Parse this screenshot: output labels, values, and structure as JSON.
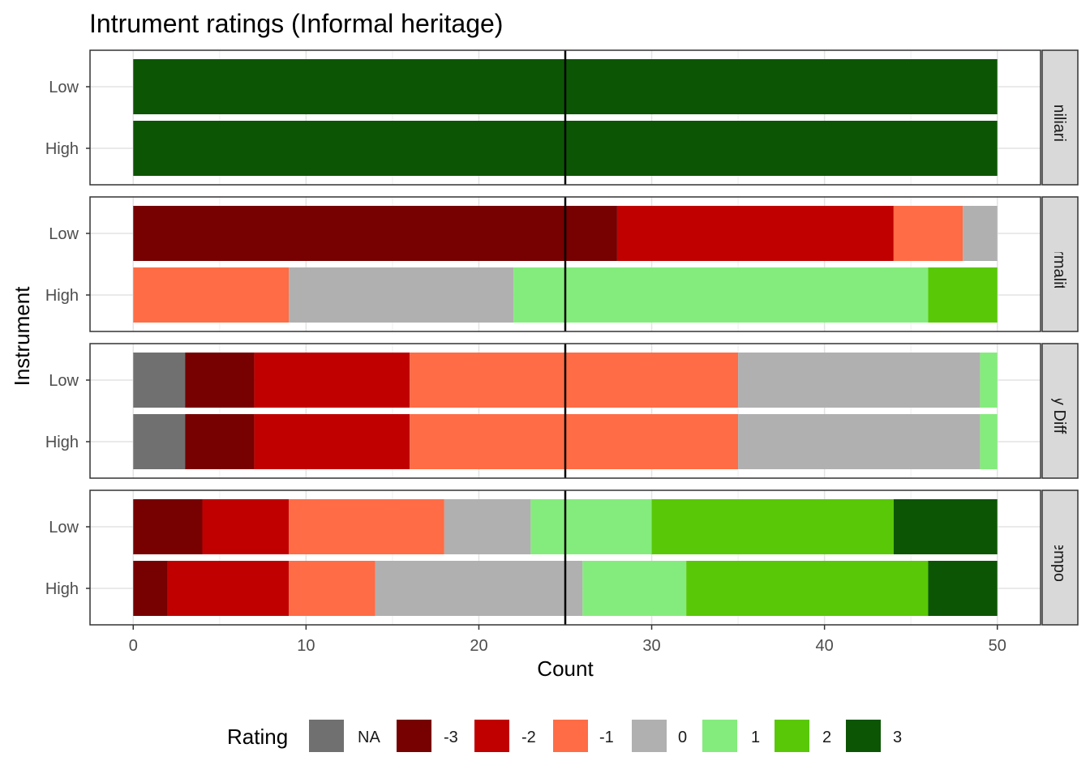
{
  "chart_data": {
    "type": "bar",
    "orientation": "horizontal",
    "stacked": true,
    "title": "Intrument ratings (Informal heritage)",
    "xlabel": "Count",
    "ylabel": "Instrument",
    "xlim": [
      -2.5,
      52.5
    ],
    "x_ticks": [
      "0",
      "10",
      "20",
      "30",
      "40",
      "50"
    ],
    "x_tick_values": [
      0,
      10,
      20,
      30,
      40,
      50
    ],
    "reference_line_x": 25,
    "grid": true,
    "legend_position": "bottom",
    "legend_title": "Rating",
    "ratings": [
      "NA",
      "-3",
      "-2",
      "-1",
      "0",
      "1",
      "2",
      "3"
    ],
    "colors": {
      "NA": "#707070",
      "-3": "#770000",
      "-2": "#c00000",
      "-1": "#ff6c45",
      "0": "#b0b0b0",
      "1": "#84ec7c",
      "2": "#59c806",
      "3": "#0c5504"
    },
    "categories": [
      "Low",
      "High"
    ],
    "panels": [
      {
        "label": "Familiarity",
        "bars": [
          {
            "category": "Low",
            "counts": {
              "NA": 0,
              "-3": 0,
              "-2": 0,
              "-1": 0,
              "0": 0,
              "1": 0,
              "2": 0,
              "3": 50
            }
          },
          {
            "category": "High",
            "counts": {
              "NA": 0,
              "-3": 0,
              "-2": 0,
              "-1": 0,
              "0": 0,
              "1": 0,
              "2": 0,
              "3": 50
            }
          }
        ]
      },
      {
        "label": "Formality",
        "bars": [
          {
            "category": "Low",
            "counts": {
              "NA": 0,
              "-3": 28,
              "-2": 16,
              "-1": 4,
              "0": 2,
              "1": 0,
              "2": 0,
              "3": 0
            }
          },
          {
            "category": "High",
            "counts": {
              "NA": 0,
              "-3": 0,
              "-2": 0,
              "-1": 9,
              "0": 13,
              "1": 24,
              "2": 4,
              "3": 0
            }
          }
        ]
      },
      {
        "label": "Formality Difference",
        "bars": [
          {
            "category": "Low",
            "counts": {
              "NA": 3,
              "-3": 4,
              "-2": 9,
              "-1": 19,
              "0": 14,
              "1": 1,
              "2": 0,
              "3": 0
            }
          },
          {
            "category": "High",
            "counts": {
              "NA": 3,
              "-3": 4,
              "-2": 9,
              "-1": 19,
              "0": 14,
              "1": 1,
              "2": 0,
              "3": 0
            }
          }
        ]
      },
      {
        "label": "Tempo",
        "bars": [
          {
            "category": "Low",
            "counts": {
              "NA": 0,
              "-3": 4,
              "-2": 5,
              "-1": 9,
              "0": 5,
              "1": 7,
              "2": 14,
              "3": 6
            }
          },
          {
            "category": "High",
            "counts": {
              "NA": 0,
              "-3": 2,
              "-2": 7,
              "-1": 5,
              "0": 12,
              "1": 6,
              "2": 14,
              "3": 4
            }
          }
        ]
      }
    ]
  }
}
